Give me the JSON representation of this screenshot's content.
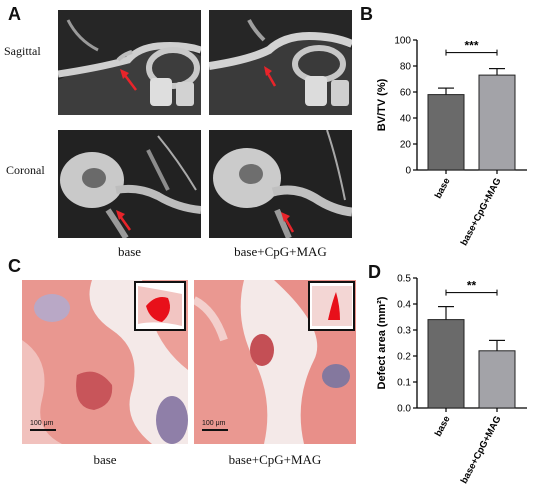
{
  "panels": {
    "a": {
      "letter": "A",
      "rows": [
        "Sagittal",
        "Coronal"
      ],
      "captions": [
        "base",
        "base+CpG+MAG"
      ]
    },
    "b": {
      "letter": "B"
    },
    "c": {
      "letter": "C",
      "captions": [
        "base",
        "base+CpG+MAG"
      ],
      "scale_bar": "100 μm"
    },
    "d": {
      "letter": "D"
    }
  },
  "colors": {
    "bar_base": "#6a6a6a",
    "bar_treated": "#a3a3a8",
    "ct_bone": "#d6d6d6",
    "histo_pink": "#ea9a95",
    "inset_red": "#e8101a",
    "arrow_red": "#e8242a"
  },
  "chart_data": [
    {
      "type": "bar",
      "categories": [
        "base",
        "base+CpG+MAG"
      ],
      "values": [
        58,
        73
      ],
      "errors": [
        5,
        5
      ],
      "ylabel": "BV/TV (%)",
      "ylim": [
        0,
        100
      ],
      "yticks": [
        "0",
        "20",
        "40",
        "60",
        "80",
        "100"
      ],
      "significance": "***"
    },
    {
      "type": "bar",
      "categories": [
        "base",
        "base+CpG+MAG"
      ],
      "values": [
        0.34,
        0.22
      ],
      "errors": [
        0.05,
        0.04
      ],
      "ylabel": "Defect area (mm²)",
      "ylim": [
        0,
        0.5
      ],
      "yticks": [
        "0.0",
        "0.1",
        "0.2",
        "0.3",
        "0.4",
        "0.5"
      ],
      "significance": "**"
    }
  ]
}
